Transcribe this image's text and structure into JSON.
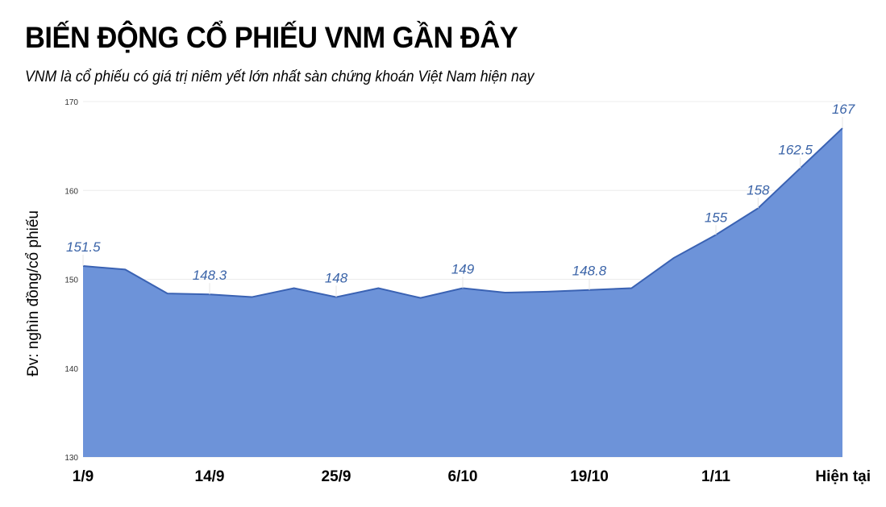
{
  "header": {
    "title": "BIẾN ĐỘNG CỔ PHIẾU VNM GẦN ĐÂY",
    "subtitle": "VNM là cổ phiếu có giá trị niêm yết lớn nhất sàn chứng khoán Việt Nam hiện nay"
  },
  "colors": {
    "area_fill": "#6d93d9",
    "line": "#3a62b3",
    "data_label": "#3b64a8",
    "gridline": "#ececec"
  },
  "chart_data": {
    "type": "area",
    "title": "BIẾN ĐỘNG CỔ PHIẾU VNM GẦN ĐÂY",
    "subtitle": "VNM là cổ phiếu có giá trị niêm yết lớn nhất sàn chứng khoán Việt Nam hiện nay",
    "xlabel": "",
    "ylabel": "Đv: nghìn đồng/cổ phiếu",
    "ylim": [
      130,
      170
    ],
    "yticks": [
      130,
      140,
      150,
      160,
      170
    ],
    "grid": true,
    "legend": "none",
    "x_tick_labels": [
      "1/9",
      "14/9",
      "25/9",
      "6/10",
      "19/10",
      "1/11",
      "Hiện tại"
    ],
    "x_tick_indices": [
      0,
      3,
      6,
      9,
      12,
      15,
      18
    ],
    "series": [
      {
        "name": "VNM",
        "values": [
          151.5,
          151.1,
          148.4,
          148.3,
          148.0,
          149.0,
          148.0,
          149.0,
          147.9,
          149.0,
          148.5,
          148.6,
          148.8,
          149.0,
          152.4,
          155.0,
          158.0,
          162.5,
          167.0
        ]
      }
    ],
    "data_labels": [
      {
        "index": 0,
        "text": "151.5"
      },
      {
        "index": 3,
        "text": "148.3"
      },
      {
        "index": 6,
        "text": "148"
      },
      {
        "index": 9,
        "text": "149"
      },
      {
        "index": 12,
        "text": "148.8"
      },
      {
        "index": 15,
        "text": "155"
      },
      {
        "index": 16,
        "text": "158"
      },
      {
        "index": 17,
        "text": "162.5"
      },
      {
        "index": 18,
        "text": "167"
      }
    ]
  }
}
